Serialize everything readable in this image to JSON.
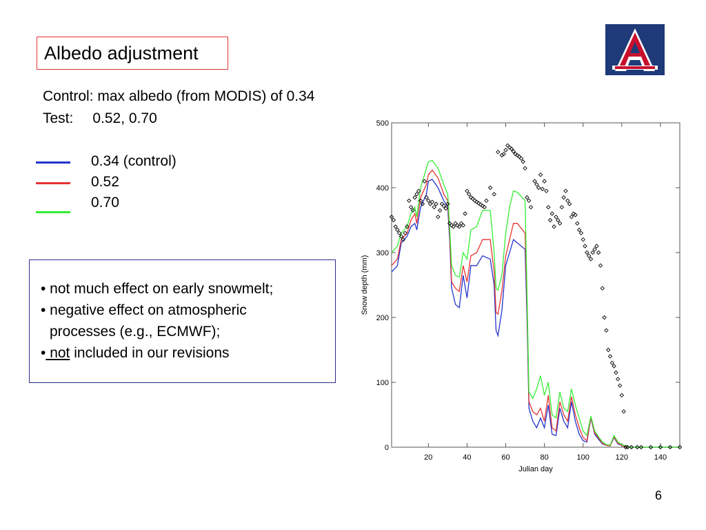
{
  "slide": {
    "title": "Albedo adjustment",
    "control_text": "Control: max albedo (from MODIS) of 0.34",
    "test_label": "Test:",
    "test_values": "0.52, 0.70",
    "legend": [
      {
        "label": "0.34 (control)",
        "color": "#2233cc"
      },
      {
        "label": "0.52",
        "color": "#e53333"
      },
      {
        "label": "0.70",
        "color": "#33ee33"
      }
    ],
    "notes": {
      "line1": "• not much effect on early snowmelt;",
      "line2": "• negative effect on atmospheric",
      "line3": "processes (e.g., ECMWF);",
      "line4_bullet": "•",
      "line4_underlined": " not",
      "line4_rest": " included in our revisions"
    },
    "page_number": "6",
    "logo": {
      "letter": "A",
      "icon": "university-a-logo-icon",
      "navy": "#1e3a78",
      "red": "#c8102e"
    }
  },
  "chart_data": {
    "type": "line",
    "xlabel": "Julian day",
    "ylabel": "Snow depth (mm)",
    "xlim": [
      1,
      150
    ],
    "ylim": [
      0,
      500
    ],
    "xticks": [
      20,
      40,
      60,
      80,
      100,
      120,
      140
    ],
    "yticks": [
      0,
      100,
      200,
      300,
      400,
      500
    ],
    "series": [
      {
        "color": "#2233cc",
        "x": [
          1,
          4,
          6,
          9,
          11,
          13,
          14,
          16,
          19,
          20,
          22,
          25,
          28,
          30,
          31,
          32,
          34,
          36,
          38,
          40,
          42,
          45,
          48,
          52,
          54,
          55,
          56,
          58,
          60,
          62,
          64,
          66,
          70,
          71,
          72,
          74,
          76,
          78,
          80,
          82,
          84,
          86,
          88,
          90,
          92,
          94,
          96,
          98,
          100,
          102,
          104,
          106,
          108,
          110,
          112,
          114,
          116,
          118,
          120,
          122,
          124,
          126,
          128,
          130,
          135,
          140,
          145,
          150
        ],
        "y": [
          270,
          280,
          315,
          325,
          340,
          345,
          335,
          370,
          390,
          410,
          413,
          400,
          380,
          370,
          320,
          245,
          220,
          215,
          265,
          230,
          280,
          280,
          295,
          290,
          250,
          180,
          172,
          210,
          280,
          300,
          320,
          315,
          305,
          200,
          60,
          40,
          30,
          45,
          30,
          65,
          20,
          18,
          60,
          40,
          30,
          70,
          40,
          20,
          10,
          8,
          45,
          20,
          12,
          5,
          3,
          2,
          15,
          5,
          3,
          1,
          0,
          0,
          0,
          0,
          0,
          0,
          0,
          0
        ]
      },
      {
        "color": "#e53333",
        "x": [
          1,
          4,
          6,
          9,
          11,
          13,
          14,
          16,
          19,
          20,
          22,
          25,
          28,
          30,
          31,
          32,
          34,
          36,
          38,
          40,
          42,
          45,
          48,
          52,
          54,
          55,
          56,
          58,
          60,
          62,
          64,
          66,
          70,
          71,
          72,
          74,
          76,
          78,
          80,
          82,
          84,
          86,
          88,
          90,
          92,
          94,
          96,
          98,
          100,
          102,
          104,
          106,
          108,
          110,
          112,
          114,
          116,
          118,
          120,
          122,
          124,
          126,
          128,
          130,
          135,
          140,
          145,
          150
        ],
        "y": [
          280,
          290,
          320,
          330,
          350,
          360,
          345,
          385,
          405,
          420,
          427,
          415,
          390,
          380,
          330,
          255,
          245,
          240,
          280,
          255,
          295,
          300,
          320,
          320,
          270,
          208,
          205,
          240,
          295,
          320,
          345,
          345,
          330,
          220,
          70,
          55,
          50,
          60,
          40,
          80,
          30,
          25,
          70,
          50,
          40,
          78,
          50,
          30,
          15,
          10,
          46,
          22,
          14,
          6,
          3,
          2,
          16,
          6,
          3,
          1,
          0,
          0,
          0,
          0,
          0,
          0,
          0,
          0
        ]
      },
      {
        "color": "#33ee33",
        "x": [
          1,
          4,
          6,
          9,
          11,
          13,
          14,
          16,
          19,
          20,
          22,
          25,
          28,
          30,
          31,
          32,
          34,
          36,
          38,
          40,
          42,
          45,
          48,
          52,
          54,
          55,
          56,
          58,
          60,
          62,
          64,
          66,
          70,
          71,
          72,
          74,
          76,
          78,
          80,
          82,
          84,
          86,
          88,
          90,
          92,
          94,
          96,
          98,
          100,
          102,
          104,
          106,
          108,
          110,
          112,
          114,
          116,
          118,
          120,
          122,
          124,
          126,
          128,
          130,
          135,
          140,
          145,
          150
        ],
        "y": [
          300,
          310,
          330,
          340,
          360,
          370,
          355,
          400,
          430,
          440,
          442,
          430,
          405,
          390,
          340,
          280,
          265,
          262,
          300,
          290,
          335,
          340,
          365,
          365,
          300,
          245,
          242,
          265,
          330,
          370,
          395,
          393,
          380,
          240,
          85,
          75,
          90,
          110,
          80,
          100,
          50,
          45,
          85,
          60,
          55,
          90,
          65,
          45,
          25,
          18,
          48,
          25,
          16,
          8,
          4,
          3,
          18,
          8,
          4,
          2,
          0,
          0,
          0,
          0,
          0,
          0,
          0,
          0
        ]
      },
      {
        "marker": "diamond",
        "color": "#000000",
        "x": [
          1,
          2,
          3,
          4,
          5,
          6,
          7,
          8,
          9,
          10,
          11,
          12,
          13,
          14,
          15,
          16,
          17,
          18,
          19,
          20,
          21,
          22,
          23,
          24,
          25,
          26,
          27,
          28,
          29,
          30,
          31,
          32,
          33,
          34,
          35,
          36,
          37,
          38,
          39,
          40,
          41,
          42,
          43,
          44,
          45,
          46,
          47,
          48,
          49,
          50,
          52,
          54,
          56,
          58,
          59,
          60,
          61,
          62,
          63,
          64,
          65,
          66,
          67,
          68,
          69,
          70,
          71,
          72,
          73,
          75,
          76,
          77,
          78,
          79,
          80,
          81,
          82,
          83,
          84,
          85,
          86,
          87,
          88,
          89,
          90,
          91,
          92,
          93,
          94,
          95,
          96,
          97,
          98,
          99,
          100,
          101,
          102,
          103,
          104,
          105,
          106,
          107,
          108,
          109,
          110,
          111,
          112,
          113,
          114,
          115,
          116,
          117,
          118,
          119,
          120,
          121,
          122,
          123,
          125,
          128,
          130,
          135,
          140,
          145,
          150
        ],
        "y": [
          355,
          350,
          340,
          335,
          330,
          325,
          320,
          330,
          340,
          380,
          370,
          365,
          385,
          390,
          395,
          380,
          375,
          410,
          385,
          380,
          375,
          378,
          370,
          375,
          355,
          365,
          375,
          372,
          368,
          375,
          345,
          342,
          340,
          345,
          342,
          340,
          345,
          342,
          360,
          395,
          390,
          385,
          383,
          380,
          378,
          376,
          374,
          372,
          370,
          380,
          400,
          390,
          455,
          450,
          452,
          458,
          465,
          462,
          460,
          456,
          452,
          450,
          448,
          445,
          440,
          430,
          385,
          380,
          370,
          410,
          405,
          400,
          420,
          398,
          410,
          395,
          370,
          350,
          360,
          340,
          355,
          350,
          345,
          370,
          385,
          395,
          380,
          375,
          355,
          360,
          358,
          345,
          335,
          330,
          320,
          310,
          300,
          295,
          290,
          300,
          305,
          310,
          300,
          280,
          245,
          200,
          180,
          150,
          140,
          130,
          125,
          115,
          105,
          95,
          80,
          55,
          0,
          0,
          0,
          0,
          0,
          0,
          0,
          0,
          0
        ]
      }
    ]
  }
}
